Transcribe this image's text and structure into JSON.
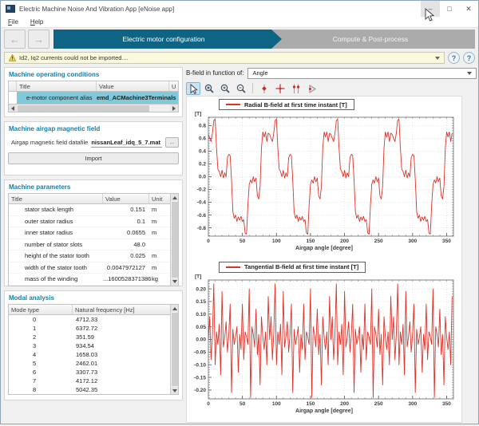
{
  "window": {
    "title": "Electric Machine Noise And Vibration App [eNoise app]",
    "controls": {
      "minimize": "–",
      "maximize": "□",
      "close": "✕"
    }
  },
  "menu": {
    "items": [
      "File",
      "Help"
    ]
  },
  "nav": {
    "back_icon": "←",
    "forward_icon": "→",
    "tabs": [
      {
        "label": "Electric motor configuration",
        "active": true
      },
      {
        "label": "Compute & Post-process",
        "active": false
      }
    ]
  },
  "alert": {
    "text": "Id2, Iq2 currents could not be imported....",
    "help_button": "?",
    "help_button2": "?"
  },
  "left_panel": {
    "operating_conditions": {
      "header": "Machine operating conditions",
      "columns": [
        "Title",
        "Value",
        "U"
      ],
      "row": {
        "title": "e-motor component alias",
        "value": "emd_ACMachine3Terminals",
        "selected": true
      }
    },
    "airgap_field": {
      "header": "Machine airgap magnetic field",
      "datafile_label": "Airgap magnetic field datafile",
      "datafile_value": "nissanLeaf_idq_5_7.mat",
      "browse_label": "...",
      "import_label": "Import"
    },
    "parameters": {
      "header": "Machine parameters",
      "columns": [
        "Title",
        "Value",
        "Unit"
      ],
      "rows": [
        [
          "stator stack length",
          "0.151",
          "m"
        ],
        [
          "outer stator radius",
          "0.1",
          "m"
        ],
        [
          "inner stator radius",
          "0.0655",
          "m"
        ],
        [
          "number of stator slots",
          "48.0",
          ""
        ],
        [
          "height of the stator tooth",
          "0.025",
          "m"
        ],
        [
          "width of the stator tooth",
          "0.0047972127",
          "m"
        ],
        [
          "mass of the winding",
          "...1600528371386",
          "kg"
        ]
      ]
    },
    "modal_analysis": {
      "header": "Modal analysis",
      "columns": [
        "Mode type",
        "Natural frequency [Hz]"
      ],
      "rows": [
        [
          "0",
          "4712.33"
        ],
        [
          "1",
          "6372.72"
        ],
        [
          "2",
          "351.59"
        ],
        [
          "3",
          "934.54"
        ],
        [
          "4",
          "1658.03"
        ],
        [
          "5",
          "2462.01"
        ],
        [
          "6",
          "3307.73"
        ],
        [
          "7",
          "4172.12"
        ],
        [
          "8",
          "5042.35"
        ]
      ]
    }
  },
  "right_panel": {
    "function_label": "B-field in function of:",
    "function_value": "Angle",
    "toolbar_tools": [
      "pointer",
      "zoom-region",
      "zoom-in",
      "zoom-out",
      "separator",
      "data-cursor",
      "crosshair",
      "data-cursor-double",
      "cursor-play"
    ],
    "toolbar_selected": "pointer"
  },
  "colors": {
    "accent_teal": "#0e6484",
    "header_blue": "#1480ab",
    "selection_teal": "#7ec9da",
    "line_red": "#e03127",
    "warning_bg": "#fbf9dc",
    "tab_inactive_gray": "#ababab"
  },
  "chart_data": [
    {
      "type": "line",
      "legend_label": "Radial B-field at first time instant [T]",
      "y_unit_label": "[T]",
      "xlabel": "Airgap angle [degree]",
      "line_color": "#e03127",
      "grid": true,
      "legend_position": "top-left",
      "xlim": [
        0,
        360
      ],
      "ylim": [
        -0.93,
        0.93
      ],
      "xticks": [
        0,
        50,
        100,
        150,
        200,
        250,
        300,
        350
      ],
      "yticks": [
        -0.8,
        -0.6,
        -0.4,
        -0.2,
        0.0,
        0.2,
        0.4,
        0.6,
        0.8
      ],
      "ytick_decimals": 1,
      "x_minor_step": 10,
      "y_minor_step": 0.04,
      "x_start": 0,
      "x_step": 2,
      "values": [
        0.66,
        0.6,
        0.55,
        0.68,
        0.88,
        0.9,
        0.45,
        0.12,
        0.08,
        0,
        0.1,
        -0.02,
        0.06,
        0,
        0.3,
        0.35,
        0.33,
        -0.05,
        -0.55,
        -0.65,
        -0.6,
        -0.7,
        -0.63,
        -0.68,
        -0.62,
        -0.7,
        -0.67,
        -0.88,
        -0.9,
        -0.45,
        -0.12,
        -0.05,
        -0.1,
        0,
        -0.08,
        -0.02,
        -0.3,
        -0.35,
        -0.15,
        0.45,
        0.7,
        0.62,
        0.7,
        0.55,
        0.68,
        0.66,
        0.6,
        0.55,
        0.68,
        0.88,
        0.9,
        0.45,
        0.12,
        0.08,
        0,
        0.1,
        -0.02,
        0.06,
        0,
        0.3,
        0.35,
        0.33,
        -0.05,
        -0.55,
        -0.65,
        -0.6,
        -0.7,
        -0.63,
        -0.68,
        -0.62,
        -0.7,
        -0.67,
        -0.88,
        -0.9,
        -0.45,
        -0.12,
        -0.05,
        -0.1,
        0,
        -0.08,
        -0.02,
        -0.3,
        -0.35,
        -0.15,
        0.45,
        0.7,
        0.62,
        0.7,
        0.55,
        0.68,
        0.66,
        0.6,
        0.55,
        0.68,
        0.88,
        0.9,
        0.45,
        0.12,
        0.08,
        0,
        0.1,
        -0.02,
        0.06,
        0,
        0.3,
        0.35,
        0.33,
        -0.05,
        -0.55,
        -0.65,
        -0.6,
        -0.7,
        -0.63,
        -0.68,
        -0.62,
        -0.7,
        -0.67,
        -0.88,
        -0.9,
        -0.45,
        -0.12,
        -0.05,
        -0.1,
        0,
        -0.08,
        -0.02,
        -0.3,
        -0.35,
        -0.15,
        0.45,
        0.7,
        0.62,
        0.7,
        0.55,
        0.68,
        0.66,
        0.6,
        0.55,
        0.68,
        0.88,
        0.9,
        0.45,
        0.12,
        0.08,
        0,
        0.1,
        -0.02,
        0.06,
        0,
        0.3,
        0.35,
        0.33,
        -0.05,
        -0.55,
        -0.65,
        -0.6,
        -0.7,
        -0.63,
        -0.68,
        -0.62,
        -0.7,
        -0.67,
        -0.88,
        -0.9,
        -0.45,
        -0.12,
        -0.05,
        -0.1,
        0,
        -0.08,
        -0.02,
        -0.3,
        -0.35,
        -0.15,
        0.45,
        0.7,
        0.62,
        0.7,
        0.55,
        0.68
      ]
    },
    {
      "type": "line",
      "legend_label": "Tangential B-field at first time instant [T]",
      "y_unit_label": "[T]",
      "xlabel": "Airgap angle [degree]",
      "line_color": "#e03127",
      "grid": true,
      "legend_position": "top-left",
      "xlim": [
        0,
        360
      ],
      "ylim": [
        -0.235,
        0.235
      ],
      "xticks": [
        0,
        50,
        100,
        150,
        200,
        250,
        300,
        350
      ],
      "yticks": [
        -0.2,
        -0.15,
        -0.1,
        -0.05,
        0.0,
        0.05,
        0.1,
        0.15,
        0.2
      ],
      "ytick_decimals": 2,
      "x_minor_step": 10,
      "y_minor_step": 0.01,
      "x_start": 0,
      "x_step": 2,
      "values": [
        0,
        0.09,
        -0.08,
        0.02,
        0.22,
        -0.1,
        0.03,
        -0.02,
        0.06,
        -0.14,
        0.19,
        -0.03,
        0.01,
        0.07,
        -0.05,
        0.02,
        0.14,
        -0.21,
        0.04,
        -0.02,
        0.01,
        0.05,
        -0.13,
        0.02,
        -0.04,
        0.14,
        -0.08,
        0.03,
        0.01,
        -0.02,
        0.2,
        -0.23,
        0.05,
        0.02,
        -0.03,
        0.12,
        -0.06,
        0.02,
        -0.18,
        0.09,
        0.01,
        -0.04,
        0.03,
        -0.1,
        0.17,
        0,
        0.09,
        -0.08,
        0.02,
        0.22,
        -0.1,
        0.03,
        -0.02,
        0.06,
        -0.14,
        0.19,
        -0.03,
        0.01,
        0.07,
        -0.05,
        0.02,
        0.14,
        -0.21,
        0.04,
        -0.02,
        0.01,
        0.05,
        -0.13,
        0.02,
        -0.04,
        0.14,
        -0.08,
        0.03,
        0.01,
        -0.02,
        0.2,
        -0.23,
        0.05,
        0.02,
        -0.03,
        0.12,
        -0.06,
        0.02,
        -0.18,
        0.09,
        0.01,
        -0.04,
        0.03,
        -0.1,
        0.17,
        0,
        0.09,
        -0.08,
        0.02,
        0.22,
        -0.1,
        0.03,
        -0.02,
        0.06,
        -0.14,
        0.19,
        -0.03,
        0.01,
        0.07,
        -0.05,
        0.02,
        0.14,
        -0.21,
        0.04,
        -0.02,
        0.01,
        0.05,
        -0.13,
        0.02,
        -0.04,
        0.14,
        -0.08,
        0.03,
        0.01,
        -0.02,
        0.2,
        -0.23,
        0.05,
        0.02,
        -0.03,
        0.12,
        -0.06,
        0.02,
        -0.18,
        0.09,
        0.01,
        -0.04,
        0.03,
        -0.1,
        0.17,
        0,
        0.09,
        -0.08,
        0.02,
        0.22,
        -0.1,
        0.03,
        -0.02,
        0.06,
        -0.14,
        0.19,
        -0.03,
        0.01,
        0.07,
        -0.05,
        0.02,
        0.14,
        -0.21,
        0.04,
        -0.02,
        0.01,
        0.05,
        -0.13,
        0.02,
        -0.04,
        0.14,
        -0.08,
        0.03,
        0.01,
        -0.02,
        0.2,
        -0.23,
        0.05,
        0.02,
        -0.03,
        0.12,
        -0.06,
        0.02,
        -0.18,
        0.09,
        0.01,
        -0.04,
        0.03,
        -0.1,
        0.17
      ]
    }
  ]
}
